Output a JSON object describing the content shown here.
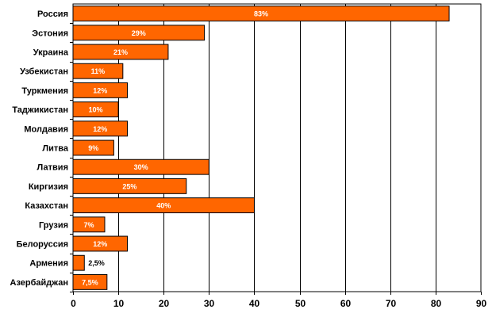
{
  "chart_data": {
    "type": "bar",
    "orientation": "horizontal",
    "categories": [
      "Россия",
      "Эстония",
      "Украина",
      "Узбекистан",
      "Туркмения",
      "Таджикистан",
      "Молдавия",
      "Литва",
      "Латвия",
      "Киргизия",
      "Казахстан",
      "Грузия",
      "Белоруссия",
      "Армения",
      "Азербайджан"
    ],
    "values": [
      83,
      29,
      21,
      11,
      12,
      10,
      12,
      9,
      30,
      25,
      40,
      7,
      12,
      2.5,
      7.5
    ],
    "data_labels": [
      "83%",
      "29%",
      "21%",
      "11%",
      "12%",
      "10%",
      "12%",
      "9%",
      "30%",
      "25%",
      "40%",
      "7%",
      "12%",
      "2,5%",
      "7,5%"
    ],
    "x_ticks": [
      "0",
      "10",
      "20",
      "30",
      "40",
      "50",
      "60",
      "70",
      "80",
      "90"
    ],
    "xlim": [
      0,
      90
    ],
    "grid": "vertical",
    "legend": "none",
    "title": "",
    "xlabel": "",
    "ylabel": "",
    "colors": {
      "bar_fill": "#FF6600",
      "bar_stroke": "#000000",
      "grid": "#000000",
      "label_inside": "#FFFFFF",
      "label_outside": "#000000"
    }
  }
}
